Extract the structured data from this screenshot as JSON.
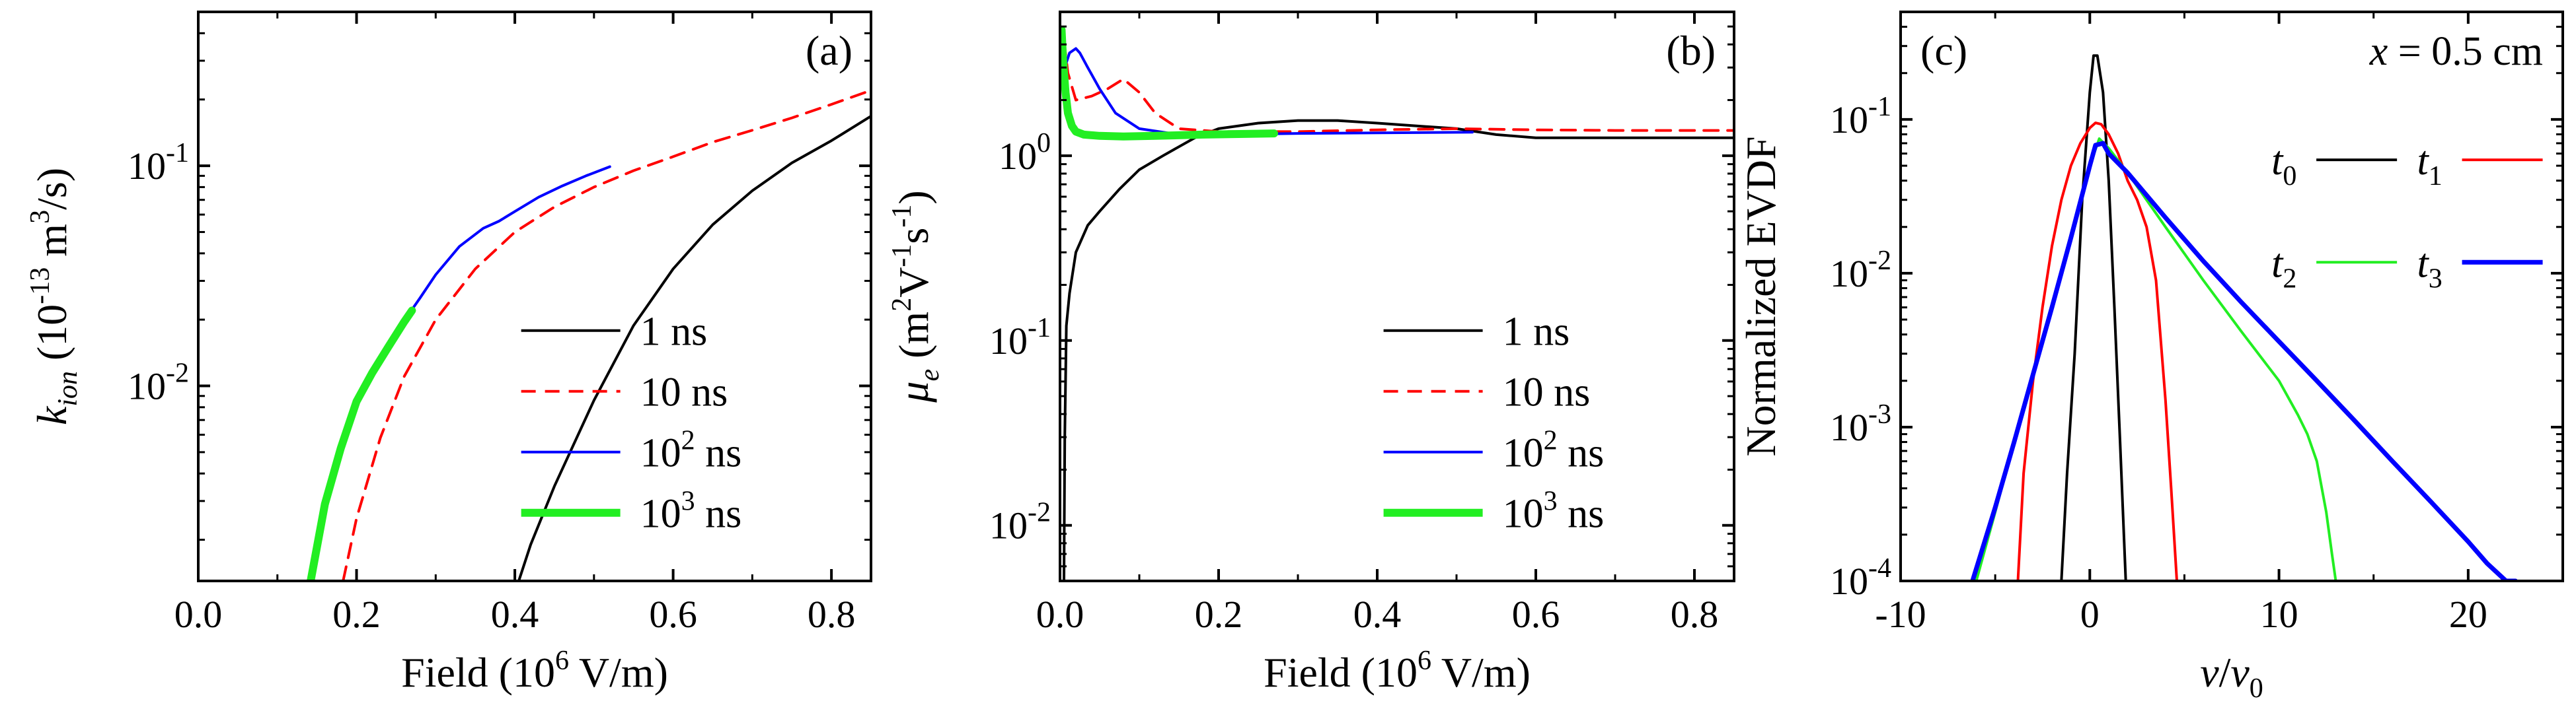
{
  "figure": {
    "panels": [
      "(a)",
      "(b)",
      "(c)"
    ]
  },
  "chart_data": [
    {
      "type": "line",
      "panel_label": "(a)",
      "xlabel": "Field (10^6 V/m)",
      "xlabel_parts": {
        "main": "Field (10",
        "sup": "6",
        "tail": " V/m)"
      },
      "ylabel": "k_ion (10^-13 m^3/s)",
      "ylabel_parts": {
        "k": "k",
        "sub": "ion",
        "a": " (10",
        "sup1": "-13",
        "b": " m",
        "sup2": "3",
        "c": "/s)"
      },
      "xscale": "linear",
      "yscale": "log",
      "xlim": [
        0.0,
        0.85
      ],
      "ylim": [
        0.0013,
        0.5
      ],
      "xticks": [
        0.0,
        0.2,
        0.4,
        0.6,
        0.8
      ],
      "xtick_labels": [
        "0.0",
        "0.2",
        "0.4",
        "0.6",
        "0.8"
      ],
      "yticks": [
        0.01,
        0.1
      ],
      "ytick_labels": [
        {
          "base": "10",
          "exp": "-2"
        },
        {
          "base": "10",
          "exp": "-1"
        }
      ],
      "legend_position": "lower-right",
      "series": [
        {
          "name": "1 ns",
          "legend": {
            "base": "1",
            "exp": "",
            "unit": " ns"
          },
          "color": "#000000",
          "dash": "",
          "width": 4,
          "x": [
            0.405,
            0.42,
            0.45,
            0.5,
            0.55,
            0.6,
            0.65,
            0.7,
            0.75,
            0.8,
            0.85
          ],
          "y": [
            0.0013,
            0.0019,
            0.0035,
            0.0086,
            0.0188,
            0.034,
            0.054,
            0.077,
            0.103,
            0.13,
            0.168
          ]
        },
        {
          "name": "10 ns",
          "legend": {
            "base": "10",
            "exp": "",
            "unit": " ns"
          },
          "color": "#ff0000",
          "dash": "22,14",
          "width": 4,
          "x": [
            0.183,
            0.2,
            0.23,
            0.26,
            0.3,
            0.35,
            0.4,
            0.45,
            0.5,
            0.55,
            0.6,
            0.65,
            0.7,
            0.75,
            0.8,
            0.85
          ],
          "y": [
            0.0013,
            0.0025,
            0.0058,
            0.011,
            0.02,
            0.034,
            0.05,
            0.065,
            0.08,
            0.095,
            0.11,
            0.128,
            0.145,
            0.165,
            0.19,
            0.22
          ]
        },
        {
          "name": "10^2 ns",
          "legend": {
            "base": "10",
            "exp": "2",
            "unit": " ns"
          },
          "color": "#0000ff",
          "dash": "",
          "width": 4,
          "x": [
            0.142,
            0.16,
            0.18,
            0.2,
            0.22,
            0.25,
            0.28,
            0.3,
            0.33,
            0.36,
            0.38,
            0.4,
            0.43,
            0.46,
            0.49,
            0.52
          ],
          "y": [
            0.0013,
            0.0029,
            0.0052,
            0.0085,
            0.012,
            0.0175,
            0.025,
            0.032,
            0.043,
            0.052,
            0.056,
            0.062,
            0.072,
            0.081,
            0.09,
            0.099
          ]
        },
        {
          "name": "10^3 ns",
          "legend": {
            "base": "10",
            "exp": "3",
            "unit": " ns"
          },
          "color": "#22ee22",
          "dash": "",
          "width": 12,
          "x": [
            0.142,
            0.16,
            0.18,
            0.2,
            0.22,
            0.24,
            0.26,
            0.27
          ],
          "y": [
            0.0013,
            0.0029,
            0.0052,
            0.0085,
            0.0115,
            0.015,
            0.0195,
            0.022
          ]
        }
      ]
    },
    {
      "type": "line",
      "panel_label": "(b)",
      "xlabel": "Field (10^6 V/m)",
      "xlabel_parts": {
        "main": "Field (10",
        "sup": "6",
        "tail": " V/m)"
      },
      "ylabel": "μ_e (m^2V^-1s^-1)",
      "ylabel_parts": {
        "mu": "μ",
        "sub": "e",
        "a": " (m",
        "sup1": "2",
        "b": "V",
        "sup2": "-1",
        "c": "s",
        "sup3": "-1",
        "d": ")"
      },
      "xscale": "linear",
      "yscale": "log",
      "xlim": [
        0.0,
        0.85
      ],
      "ylim": [
        0.005,
        6.0
      ],
      "xticks": [
        0.0,
        0.2,
        0.4,
        0.6,
        0.8
      ],
      "xtick_labels": [
        "0.0",
        "0.2",
        "0.4",
        "0.6",
        "0.8"
      ],
      "yticks": [
        0.01,
        0.1,
        1.0
      ],
      "ytick_labels": [
        {
          "base": "10",
          "exp": "-2"
        },
        {
          "base": "10",
          "exp": "-1"
        },
        {
          "base": "10",
          "exp": "0"
        }
      ],
      "legend_position": "lower-right",
      "series": [
        {
          "name": "1 ns",
          "legend": {
            "base": "1",
            "exp": "",
            "unit": " ns"
          },
          "color": "#000000",
          "dash": "",
          "width": 4,
          "x": [
            0.005,
            0.006,
            0.008,
            0.012,
            0.02,
            0.035,
            0.05,
            0.075,
            0.1,
            0.13,
            0.17,
            0.2,
            0.25,
            0.3,
            0.35,
            0.4,
            0.45,
            0.5,
            0.55,
            0.6,
            0.7,
            0.85
          ],
          "y": [
            0.005,
            0.03,
            0.12,
            0.18,
            0.3,
            0.42,
            0.5,
            0.66,
            0.84,
            1.0,
            1.25,
            1.4,
            1.5,
            1.55,
            1.55,
            1.5,
            1.45,
            1.4,
            1.3,
            1.25,
            1.25,
            1.25
          ]
        },
        {
          "name": "10 ns",
          "legend": {
            "base": "10",
            "exp": "",
            "unit": " ns"
          },
          "color": "#ff0000",
          "dash": "22,14",
          "width": 4,
          "x": [
            0.005,
            0.01,
            0.02,
            0.04,
            0.06,
            0.08,
            0.1,
            0.12,
            0.15,
            0.2,
            0.3,
            0.4,
            0.5,
            0.6,
            0.7,
            0.85
          ],
          "y": [
            4.2,
            2.8,
            2.0,
            2.1,
            2.3,
            2.6,
            2.2,
            1.7,
            1.4,
            1.35,
            1.35,
            1.38,
            1.4,
            1.38,
            1.37,
            1.37
          ]
        },
        {
          "name": "10^2 ns",
          "legend": {
            "base": "10",
            "exp": "2",
            "unit": " ns"
          },
          "color": "#0000ff",
          "dash": "",
          "width": 4,
          "x": [
            0.002,
            0.006,
            0.012,
            0.02,
            0.025,
            0.035,
            0.05,
            0.07,
            0.1,
            0.15,
            0.2,
            0.3,
            0.4,
            0.52
          ],
          "y": [
            2.5,
            3.0,
            3.6,
            3.8,
            3.6,
            3.0,
            2.3,
            1.7,
            1.4,
            1.3,
            1.3,
            1.32,
            1.33,
            1.34
          ]
        },
        {
          "name": "10^3 ns",
          "legend": {
            "base": "10",
            "exp": "3",
            "unit": " ns"
          },
          "color": "#22ee22",
          "dash": "",
          "width": 12,
          "x": [
            0.002,
            0.004,
            0.007,
            0.01,
            0.015,
            0.02,
            0.03,
            0.05,
            0.08,
            0.12,
            0.18,
            0.27
          ],
          "y": [
            4.8,
            3.2,
            2.2,
            1.7,
            1.45,
            1.35,
            1.3,
            1.28,
            1.27,
            1.28,
            1.3,
            1.32
          ]
        }
      ]
    },
    {
      "type": "line",
      "panel_label": "(c)",
      "annotation": {
        "var": "x",
        "text": " = 0.5 cm"
      },
      "xlabel": "v/v_0",
      "xlabel_parts": {
        "v": "v",
        "slash": "/",
        "v2": "v",
        "sub": "0"
      },
      "ylabel": "Normalized EVDF",
      "xscale": "linear",
      "yscale": "log",
      "xlim": [
        -10,
        25
      ],
      "ylim": [
        0.0001,
        0.5
      ],
      "xticks": [
        -10,
        0,
        10,
        20
      ],
      "xtick_labels": [
        "-10",
        "0",
        "10",
        "20"
      ],
      "yticks": [
        0.0001,
        0.001,
        0.01,
        0.1
      ],
      "ytick_labels": [
        {
          "base": "10",
          "exp": "-4"
        },
        {
          "base": "10",
          "exp": "-3"
        },
        {
          "base": "10",
          "exp": "-2"
        },
        {
          "base": "10",
          "exp": "-1"
        }
      ],
      "legend_position": "right",
      "series": [
        {
          "name": "t_0",
          "legend": {
            "t": "t",
            "sub": "0"
          },
          "color": "#000000",
          "dash": "",
          "width": 4,
          "x": [
            -1.5,
            -1.2,
            -0.8,
            -0.4,
            0.0,
            0.2,
            0.4,
            0.7,
            1.0,
            1.3,
            1.6,
            1.9
          ],
          "y": [
            0.0001,
            0.0005,
            0.003,
            0.03,
            0.15,
            0.26,
            0.26,
            0.15,
            0.04,
            0.006,
            0.0008,
            0.0001
          ]
        },
        {
          "name": "t_1",
          "legend": {
            "t": "t",
            "sub": "1"
          },
          "color": "#ff0000",
          "dash": "",
          "width": 4,
          "x": [
            -3.8,
            -3.5,
            -3.0,
            -2.5,
            -2.0,
            -1.5,
            -1.0,
            -0.5,
            0.0,
            0.3,
            0.6,
            1.0,
            1.5,
            2.0,
            2.5,
            3.0,
            3.5,
            4.0,
            4.3,
            4.6
          ],
          "y": [
            0.0001,
            0.0005,
            0.002,
            0.006,
            0.015,
            0.03,
            0.05,
            0.07,
            0.088,
            0.095,
            0.093,
            0.08,
            0.06,
            0.04,
            0.03,
            0.02,
            0.009,
            0.0015,
            0.0004,
            0.0001
          ]
        },
        {
          "name": "t_2",
          "legend": {
            "t": "t",
            "sub": "2"
          },
          "color": "#22ee22",
          "dash": "",
          "width": 4,
          "x": [
            -6.0,
            -5.0,
            -4.0,
            -3.0,
            -2.0,
            -1.0,
            0.0,
            0.5,
            1.0,
            2.0,
            4.0,
            6.0,
            8.0,
            10.0,
            11.0,
            11.5,
            12.0,
            12.5,
            12.8,
            13.0
          ],
          "y": [
            0.0001,
            0.00028,
            0.0008,
            0.0023,
            0.006,
            0.017,
            0.05,
            0.075,
            0.065,
            0.045,
            0.02,
            0.009,
            0.0042,
            0.002,
            0.0012,
            0.0009,
            0.0006,
            0.00028,
            0.00015,
            0.0001
          ]
        },
        {
          "name": "t_3",
          "legend": {
            "t": "t",
            "sub": "3"
          },
          "color": "#0000ff",
          "dash": "",
          "width": 7,
          "x": [
            -6.2,
            -5.0,
            -4.0,
            -3.0,
            -2.0,
            -1.0,
            0.0,
            0.3,
            0.7,
            1.0,
            2.0,
            4.0,
            6.0,
            8.0,
            10.0,
            12.0,
            14.0,
            16.0,
            18.0,
            20.0,
            21.0,
            22.0,
            22.5
          ],
          "y": [
            0.0001,
            0.0003,
            0.0008,
            0.0022,
            0.006,
            0.017,
            0.05,
            0.068,
            0.07,
            0.06,
            0.045,
            0.023,
            0.012,
            0.0065,
            0.0036,
            0.002,
            0.0011,
            0.0006,
            0.00033,
            0.00018,
            0.00013,
            0.0001,
            0.0001
          ]
        }
      ]
    }
  ]
}
